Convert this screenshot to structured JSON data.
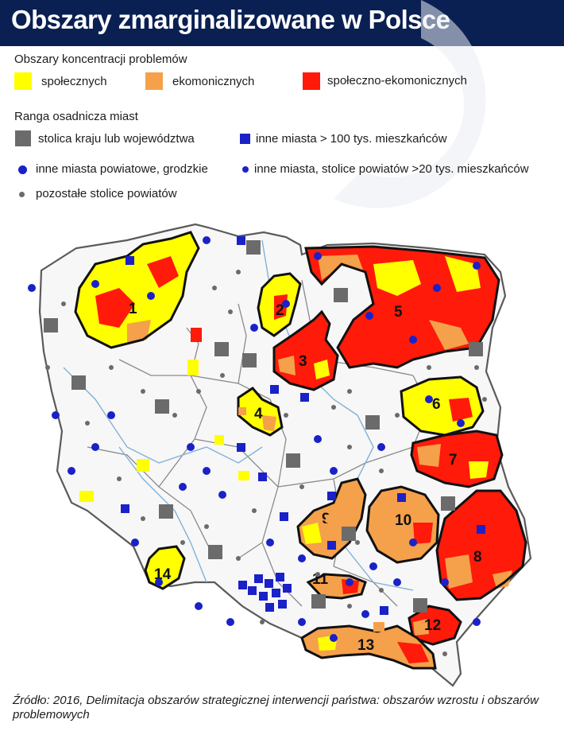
{
  "title": "Obszary zmarginalizowane w Polsce",
  "legend_problems": {
    "heading": "Obszary koncentracji problemów",
    "items": [
      {
        "label": "społecznych",
        "color": "#ffff00"
      },
      {
        "label": "ekomonicznych",
        "color": "#f5a04a"
      },
      {
        "label": "społeczno-ekomonicznych",
        "color": "#ff1a0a"
      }
    ]
  },
  "legend_cities": {
    "heading": "Ranga osadnicza miast",
    "items": [
      {
        "label": "stolica kraju lub województwa",
        "color": "#6b6b6b"
      },
      {
        "label": "inne miasta > 100 tys. mieszkańców",
        "color": "#1a21c8"
      },
      {
        "label": "inne miasta powiatowe, grodzkie",
        "color": "#1a21c8"
      },
      {
        "label": "inne miasta, stolice powiatów >20 tys. mieszkańców",
        "color": "#1a21c8"
      },
      {
        "label": "pozostałe stolice powiatów",
        "color": "#6b6b6b"
      }
    ]
  },
  "regions": [
    {
      "id": "1",
      "label": "1",
      "type": "społeczno-ekonomiczne / społeczne"
    },
    {
      "id": "2",
      "label": "2"
    },
    {
      "id": "3",
      "label": "3"
    },
    {
      "id": "4",
      "label": "4"
    },
    {
      "id": "5",
      "label": "5"
    },
    {
      "id": "6",
      "label": "6"
    },
    {
      "id": "7",
      "label": "7"
    },
    {
      "id": "8",
      "label": "8"
    },
    {
      "id": "9",
      "label": "9"
    },
    {
      "id": "10",
      "label": "10"
    },
    {
      "id": "11",
      "label": "11"
    },
    {
      "id": "12",
      "label": "12"
    },
    {
      "id": "13",
      "label": "13"
    },
    {
      "id": "14",
      "label": "14"
    }
  ],
  "source": "Źródło: 2016, Delimitacja obszarów strategicznej interwencji państwa: obszarów wzrostu i obszarów problemowych"
}
